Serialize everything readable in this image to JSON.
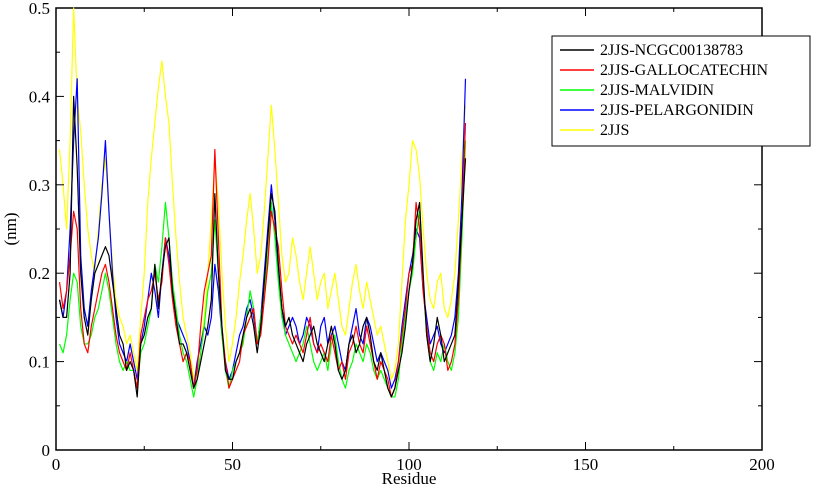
{
  "chart_data": {
    "type": "line",
    "title": "",
    "xlabel": "Residue",
    "ylabel": "(nm)",
    "xlim": [
      0,
      200
    ],
    "ylim": [
      0,
      0.5
    ],
    "x_ticks": [
      0,
      50,
      100,
      150,
      200
    ],
    "x_tick_labels": [
      "0",
      "50",
      "100",
      "150",
      "200"
    ],
    "y_ticks": [
      0,
      0.1,
      0.2,
      0.3,
      0.4,
      0.5
    ],
    "y_tick_labels": [
      "0",
      "0.1",
      "0.2",
      "0.3",
      "0.4",
      "0.5"
    ],
    "grid": false,
    "legend_position": "top-right",
    "x": [
      1,
      2,
      3,
      4,
      5,
      6,
      7,
      8,
      9,
      10,
      11,
      12,
      13,
      14,
      15,
      16,
      17,
      18,
      19,
      20,
      21,
      22,
      23,
      24,
      25,
      26,
      27,
      28,
      29,
      30,
      31,
      32,
      33,
      34,
      35,
      36,
      37,
      38,
      39,
      40,
      41,
      42,
      43,
      44,
      45,
      46,
      47,
      48,
      49,
      50,
      51,
      52,
      53,
      54,
      55,
      56,
      57,
      58,
      59,
      60,
      61,
      62,
      63,
      64,
      65,
      66,
      67,
      68,
      69,
      70,
      71,
      72,
      73,
      74,
      75,
      76,
      77,
      78,
      79,
      80,
      81,
      82,
      83,
      84,
      85,
      86,
      87,
      88,
      89,
      90,
      91,
      92,
      93,
      94,
      95,
      96,
      97,
      98,
      99,
      100,
      101,
      102,
      103,
      104,
      105,
      106,
      107,
      108,
      109,
      110,
      111,
      112,
      113,
      114,
      115,
      116
    ],
    "series": [
      {
        "name": "2JJS-NCGC00138783",
        "color": "#000000",
        "values": [
          0.17,
          0.15,
          0.15,
          0.2,
          0.4,
          0.32,
          0.2,
          0.15,
          0.13,
          0.17,
          0.2,
          0.21,
          0.22,
          0.23,
          0.22,
          0.19,
          0.16,
          0.13,
          0.12,
          0.09,
          0.1,
          0.09,
          0.06,
          0.12,
          0.13,
          0.15,
          0.16,
          0.21,
          0.16,
          0.2,
          0.23,
          0.24,
          0.18,
          0.15,
          0.12,
          0.12,
          0.11,
          0.09,
          0.07,
          0.08,
          0.1,
          0.12,
          0.14,
          0.17,
          0.29,
          0.2,
          0.14,
          0.09,
          0.08,
          0.08,
          0.1,
          0.11,
          0.13,
          0.15,
          0.16,
          0.14,
          0.11,
          0.14,
          0.19,
          0.24,
          0.29,
          0.27,
          0.21,
          0.16,
          0.14,
          0.15,
          0.13,
          0.12,
          0.11,
          0.1,
          0.12,
          0.13,
          0.14,
          0.12,
          0.11,
          0.1,
          0.12,
          0.14,
          0.12,
          0.09,
          0.08,
          0.09,
          0.12,
          0.13,
          0.11,
          0.12,
          0.14,
          0.15,
          0.13,
          0.1,
          0.09,
          0.11,
          0.09,
          0.07,
          0.06,
          0.07,
          0.09,
          0.11,
          0.14,
          0.18,
          0.21,
          0.26,
          0.28,
          0.2,
          0.13,
          0.1,
          0.12,
          0.15,
          0.13,
          0.1,
          0.11,
          0.12,
          0.13,
          0.19,
          0.26,
          0.33
        ]
      },
      {
        "name": "2JJS-GALLOCATECHIN",
        "color": "#ff0000",
        "values": [
          0.19,
          0.16,
          0.18,
          0.22,
          0.27,
          0.25,
          0.16,
          0.12,
          0.11,
          0.14,
          0.16,
          0.18,
          0.2,
          0.21,
          0.19,
          0.16,
          0.13,
          0.11,
          0.1,
          0.09,
          0.11,
          0.09,
          0.07,
          0.13,
          0.15,
          0.17,
          0.18,
          0.2,
          0.17,
          0.19,
          0.24,
          0.21,
          0.17,
          0.14,
          0.12,
          0.1,
          0.11,
          0.1,
          0.07,
          0.09,
          0.14,
          0.18,
          0.2,
          0.22,
          0.34,
          0.24,
          0.14,
          0.1,
          0.07,
          0.08,
          0.09,
          0.1,
          0.13,
          0.14,
          0.15,
          0.16,
          0.12,
          0.13,
          0.17,
          0.21,
          0.27,
          0.25,
          0.23,
          0.18,
          0.14,
          0.13,
          0.12,
          0.13,
          0.12,
          0.11,
          0.13,
          0.15,
          0.12,
          0.11,
          0.12,
          0.11,
          0.1,
          0.13,
          0.11,
          0.09,
          0.1,
          0.08,
          0.11,
          0.12,
          0.14,
          0.12,
          0.11,
          0.14,
          0.12,
          0.1,
          0.08,
          0.1,
          0.09,
          0.08,
          0.06,
          0.07,
          0.1,
          0.13,
          0.16,
          0.2,
          0.21,
          0.28,
          0.25,
          0.18,
          0.14,
          0.11,
          0.1,
          0.12,
          0.13,
          0.12,
          0.09,
          0.1,
          0.12,
          0.17,
          0.26,
          0.37
        ]
      },
      {
        "name": "2JJS-MALVIDIN",
        "color": "#00ff00",
        "values": [
          0.12,
          0.11,
          0.13,
          0.17,
          0.2,
          0.19,
          0.14,
          0.12,
          0.12,
          0.13,
          0.15,
          0.16,
          0.18,
          0.2,
          0.18,
          0.15,
          0.12,
          0.1,
          0.09,
          0.1,
          0.09,
          0.09,
          0.07,
          0.11,
          0.12,
          0.14,
          0.16,
          0.21,
          0.19,
          0.23,
          0.28,
          0.24,
          0.19,
          0.16,
          0.13,
          0.11,
          0.1,
          0.08,
          0.06,
          0.08,
          0.11,
          0.14,
          0.18,
          0.2,
          0.26,
          0.2,
          0.13,
          0.09,
          0.07,
          0.09,
          0.1,
          0.11,
          0.12,
          0.15,
          0.18,
          0.16,
          0.12,
          0.15,
          0.18,
          0.22,
          0.28,
          0.24,
          0.19,
          0.15,
          0.13,
          0.12,
          0.11,
          0.1,
          0.11,
          0.12,
          0.14,
          0.12,
          0.1,
          0.09,
          0.1,
          0.11,
          0.09,
          0.12,
          0.13,
          0.1,
          0.08,
          0.07,
          0.09,
          0.1,
          0.12,
          0.11,
          0.1,
          0.12,
          0.11,
          0.09,
          0.08,
          0.09,
          0.08,
          0.07,
          0.06,
          0.06,
          0.08,
          0.12,
          0.15,
          0.18,
          0.2,
          0.24,
          0.27,
          0.19,
          0.13,
          0.1,
          0.09,
          0.11,
          0.1,
          0.12,
          0.1,
          0.09,
          0.11,
          0.15,
          0.24,
          0.35
        ]
      },
      {
        "name": "2JJS-PELARGONIDIN",
        "color": "#0000ff",
        "values": [
          0.17,
          0.15,
          0.18,
          0.25,
          0.35,
          0.42,
          0.22,
          0.16,
          0.14,
          0.18,
          0.21,
          0.24,
          0.29,
          0.35,
          0.27,
          0.2,
          0.15,
          0.12,
          0.11,
          0.1,
          0.12,
          0.1,
          0.08,
          0.12,
          0.14,
          0.17,
          0.2,
          0.18,
          0.15,
          0.2,
          0.24,
          0.22,
          0.18,
          0.15,
          0.14,
          0.13,
          0.12,
          0.1,
          0.07,
          0.1,
          0.12,
          0.14,
          0.13,
          0.15,
          0.21,
          0.18,
          0.13,
          0.1,
          0.08,
          0.09,
          0.11,
          0.13,
          0.14,
          0.16,
          0.17,
          0.15,
          0.12,
          0.15,
          0.2,
          0.25,
          0.3,
          0.26,
          0.2,
          0.16,
          0.13,
          0.14,
          0.15,
          0.14,
          0.12,
          0.13,
          0.15,
          0.14,
          0.12,
          0.11,
          0.14,
          0.15,
          0.12,
          0.13,
          0.14,
          0.12,
          0.1,
          0.09,
          0.12,
          0.14,
          0.16,
          0.13,
          0.12,
          0.15,
          0.14,
          0.12,
          0.1,
          0.11,
          0.1,
          0.09,
          0.07,
          0.08,
          0.1,
          0.14,
          0.17,
          0.2,
          0.22,
          0.25,
          0.24,
          0.18,
          0.15,
          0.12,
          0.13,
          0.14,
          0.12,
          0.11,
          0.12,
          0.13,
          0.15,
          0.2,
          0.29,
          0.42
        ]
      },
      {
        "name": "2JJS",
        "color": "#ffff00",
        "values": [
          0.34,
          0.3,
          0.25,
          0.35,
          0.5,
          0.4,
          0.36,
          0.3,
          0.25,
          0.22,
          0.2,
          0.25,
          0.3,
          0.33,
          0.27,
          0.21,
          0.17,
          0.15,
          0.14,
          0.12,
          0.13,
          0.11,
          0.09,
          0.15,
          0.2,
          0.28,
          0.33,
          0.37,
          0.41,
          0.44,
          0.4,
          0.37,
          0.3,
          0.24,
          0.19,
          0.15,
          0.13,
          0.11,
          0.08,
          0.1,
          0.12,
          0.15,
          0.2,
          0.26,
          0.33,
          0.28,
          0.2,
          0.14,
          0.1,
          0.12,
          0.15,
          0.19,
          0.22,
          0.26,
          0.29,
          0.25,
          0.2,
          0.22,
          0.27,
          0.33,
          0.39,
          0.34,
          0.28,
          0.22,
          0.19,
          0.2,
          0.24,
          0.22,
          0.19,
          0.17,
          0.2,
          0.23,
          0.2,
          0.17,
          0.19,
          0.2,
          0.16,
          0.18,
          0.2,
          0.17,
          0.14,
          0.13,
          0.16,
          0.19,
          0.21,
          0.18,
          0.16,
          0.19,
          0.17,
          0.15,
          0.13,
          0.14,
          0.12,
          0.1,
          0.08,
          0.09,
          0.12,
          0.19,
          0.26,
          0.3,
          0.35,
          0.34,
          0.31,
          0.25,
          0.2,
          0.17,
          0.16,
          0.19,
          0.2,
          0.16,
          0.15,
          0.17,
          0.2,
          0.26,
          0.33,
          0.39
        ]
      }
    ]
  }
}
